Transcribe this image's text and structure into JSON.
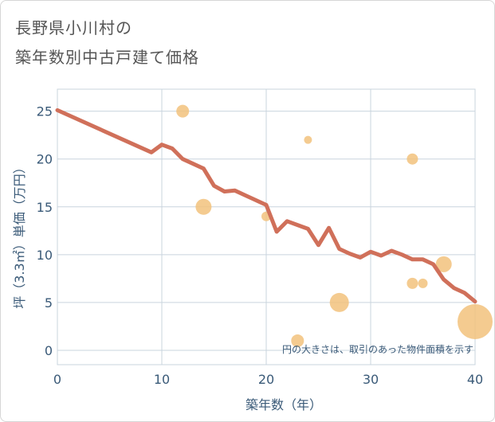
{
  "title_line1": "長野県小川村の",
  "title_line2": "築年数別中古戸建て価格",
  "chart_data": {
    "type": "scatter",
    "xlabel": "築年数（年）",
    "ylabel": "坪（3.3㎡）単価（万円）",
    "xlim": [
      0,
      40
    ],
    "ylim": [
      -1.5,
      27.3
    ],
    "xticks": [
      0,
      10,
      20,
      30,
      40
    ],
    "yticks": [
      0,
      5,
      10,
      15,
      20,
      25
    ],
    "grid": true,
    "annotation": "円の大きさは、取引のあった物件面積を示す",
    "colors": {
      "trend": "#d0705a",
      "bubble": "#f2c27c",
      "grid": "#c9d4de",
      "axis_text": "#3a5a78"
    },
    "trend_line": {
      "x": [
        0,
        9,
        10,
        11,
        12,
        13,
        14,
        15,
        16,
        17,
        18,
        19,
        20,
        21,
        22,
        23,
        24,
        25,
        26,
        27,
        28,
        29,
        30,
        31,
        32,
        33,
        34,
        35,
        36,
        37,
        38,
        39,
        40
      ],
      "y": [
        25.1,
        20.7,
        21.5,
        21.1,
        20.0,
        19.5,
        19.0,
        17.2,
        16.6,
        16.7,
        16.2,
        15.7,
        15.2,
        12.4,
        13.5,
        13.1,
        12.7,
        11.0,
        12.8,
        10.6,
        10.1,
        9.7,
        10.3,
        9.9,
        10.4,
        10.0,
        9.5,
        9.5,
        9.0,
        7.4,
        6.5,
        6.0,
        5.1
      ]
    },
    "points": [
      {
        "x": 12,
        "y": 25,
        "size": 8
      },
      {
        "x": 14,
        "y": 15,
        "size": 10
      },
      {
        "x": 20,
        "y": 14,
        "size": 6
      },
      {
        "x": 23,
        "y": 1,
        "size": 8
      },
      {
        "x": 24,
        "y": 22,
        "size": 5
      },
      {
        "x": 27,
        "y": 5,
        "size": 12
      },
      {
        "x": 34,
        "y": 20,
        "size": 7
      },
      {
        "x": 34,
        "y": 7,
        "size": 7
      },
      {
        "x": 35,
        "y": 7,
        "size": 6
      },
      {
        "x": 37,
        "y": 9,
        "size": 10
      },
      {
        "x": 40,
        "y": 3,
        "size": 22
      }
    ]
  }
}
